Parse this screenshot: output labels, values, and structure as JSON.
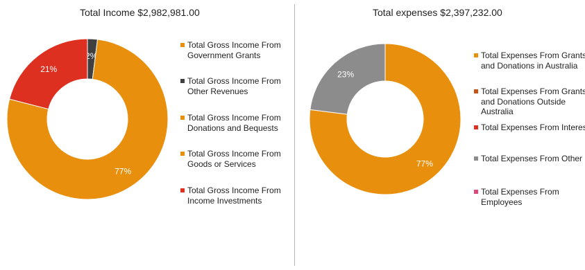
{
  "chart_data": [
    {
      "type": "pie",
      "donut": true,
      "title": "Total Income $2,982,981.00",
      "legend_position": "right",
      "series": [
        {
          "name": "Total Gross Income From Government Grants",
          "value": 0,
          "color": "#e8900d"
        },
        {
          "name": "Total Gross Income From Other Revenues",
          "value": 2,
          "label": "2%",
          "color": "#404040"
        },
        {
          "name": "Total Gross Income From Donations and Bequests",
          "value": 0,
          "color": "#e8900d"
        },
        {
          "name": "Total Gross Income From Goods or Services",
          "value": 77,
          "label": "77%",
          "color": "#e8900d"
        },
        {
          "name": "Total Gross Income From Income Investments",
          "value": 21,
          "label": "21%",
          "color": "#dd3020"
        }
      ]
    },
    {
      "type": "pie",
      "donut": true,
      "title": "Total expenses $2,397,232.00",
      "legend_position": "right",
      "series": [
        {
          "name": "Total Expenses From Grants and Donations in Australia",
          "value": 77,
          "label": "77%",
          "color": "#e8900d"
        },
        {
          "name": "Total Expenses From Grants and Donations Outside Australia",
          "value": 0,
          "color": "#c75316"
        },
        {
          "name": "Total Expenses From Interest",
          "value": 0,
          "color": "#dd3020"
        },
        {
          "name": "Total Expenses From Other",
          "value": 23,
          "label": "23%",
          "color": "#8c8c8c"
        },
        {
          "name": "Total Expenses From Employees",
          "value": 0,
          "color": "#e0467a"
        }
      ]
    }
  ]
}
